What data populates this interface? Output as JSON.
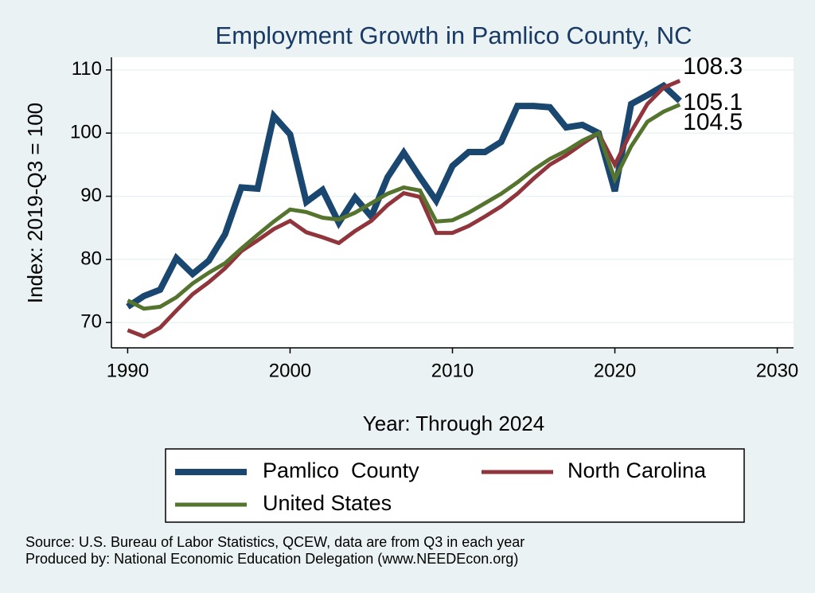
{
  "chart_data": {
    "type": "line",
    "title": "Employment Growth in Pamlico County, NC",
    "x_label": "Year: Through 2024",
    "y_label": "Index: 2019-Q3 = 100",
    "x": [
      1990,
      1991,
      1992,
      1993,
      1994,
      1995,
      1996,
      1997,
      1998,
      1999,
      2000,
      2001,
      2002,
      2003,
      2004,
      2005,
      2006,
      2007,
      2008,
      2009,
      2010,
      2011,
      2012,
      2013,
      2014,
      2015,
      2016,
      2017,
      2018,
      2019,
      2020,
      2021,
      2022,
      2023,
      2024
    ],
    "series": [
      {
        "name": "Pamlico  County",
        "color": "#1a476f",
        "width": 8,
        "values": [
          72.5,
          74.2,
          75.2,
          80.2,
          77.7,
          79.8,
          84,
          91.4,
          91.2,
          102.7,
          99.8,
          89.1,
          91,
          85.8,
          89.8,
          86.8,
          93,
          96.9,
          93,
          89.3,
          94.8,
          97,
          97,
          98.6,
          104.3,
          104.3,
          104.1,
          100.9,
          101.3,
          100,
          90.8,
          104.6,
          106,
          107.5,
          105.1
        ]
      },
      {
        "name": "North Carolina",
        "color": "#90353b",
        "width": 5,
        "values": [
          68.8,
          67.8,
          69.2,
          71.9,
          74.5,
          76.4,
          78.6,
          81.3,
          83,
          84.8,
          86.1,
          84.3,
          83.5,
          82.6,
          84.5,
          86.1,
          88.6,
          90.5,
          89.9,
          84.2,
          84.2,
          85.3,
          86.8,
          88.4,
          90.4,
          92.8,
          95,
          96.5,
          98.3,
          100,
          95,
          100.2,
          104.6,
          107.2,
          108.3
        ]
      },
      {
        "name": "United States",
        "color": "#55752f",
        "width": 5,
        "values": [
          73.5,
          72.2,
          72.5,
          74,
          76.2,
          77.9,
          79.4,
          81.7,
          83.9,
          86,
          87.9,
          87.5,
          86.6,
          86.3,
          87.4,
          88.9,
          90.4,
          91.4,
          90.9,
          86,
          86.2,
          87.4,
          88.9,
          90.4,
          92.2,
          94.2,
          95.9,
          97.2,
          98.8,
          100,
          92.7,
          97.9,
          101.8,
          103.4,
          104.5
        ]
      }
    ],
    "xlim": [
      1989,
      2031
    ],
    "xticks": [
      1990,
      2000,
      2010,
      2020,
      2030
    ],
    "ylim": [
      66,
      112
    ],
    "yticks": [
      70,
      80,
      90,
      100,
      110
    ],
    "grid": true,
    "notes": [
      "Source: U.S. Bureau of Labor Statistics, QCEW, data are from Q3 in each year",
      "Produced by: National Economic Education Delegation (www.NEEDEcon.org)"
    ]
  }
}
